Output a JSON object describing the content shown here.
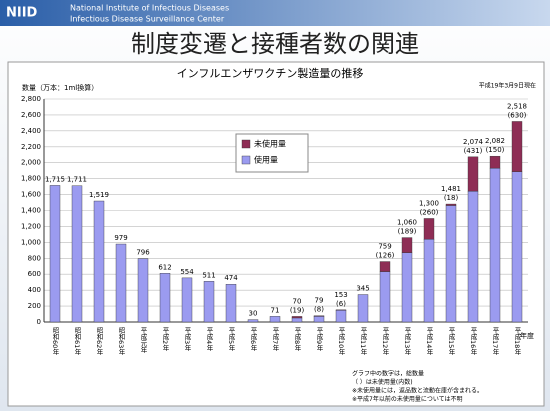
{
  "header": {
    "logo": "NIID",
    "institute": "National Institute of Infectious Diseases",
    "center": "Infectious Disease Surveillance Center",
    "title": "制度変遷と接種者数の関連"
  },
  "chart_data": {
    "type": "stacked_bar",
    "title": "インフルエンザワクチン製造量の推移",
    "date": "平成19年3月9日現在",
    "y_label": "数量（万本：1ml換算）",
    "x_label": "年度",
    "categories": [
      "昭和60年",
      "昭和61年",
      "昭和62年",
      "昭和63年",
      "平成元年",
      "平成2年",
      "平成3年",
      "平成4年",
      "平成5年",
      "平成6年",
      "平成7年",
      "平成8年",
      "平成9年",
      "平成10年",
      "平成11年",
      "平成12年",
      "平成13年",
      "平成14年",
      "平成15年",
      "平成16年",
      "平成17年",
      "平成18年"
    ],
    "series": [
      {
        "name": "使用量",
        "color": "#9b9bf0",
        "values": [
          1715,
          1711,
          1519,
          979,
          796,
          612,
          554,
          511,
          474,
          30,
          71,
          51,
          71,
          147,
          345,
          633,
          871,
          1040,
          1463,
          1643,
          1932,
          1888
        ]
      },
      {
        "name": "未使用量",
        "color": "#8e2d55",
        "values": [
          null,
          null,
          null,
          null,
          null,
          null,
          null,
          null,
          null,
          null,
          null,
          19,
          8,
          6,
          null,
          126,
          189,
          260,
          18,
          431,
          150,
          630
        ],
        "value_labels": [
          null,
          null,
          null,
          null,
          null,
          null,
          null,
          null,
          null,
          null,
          null,
          "(19)",
          "(8)",
          "(6)",
          null,
          "(126)",
          "(189)",
          "(260)",
          "(18)",
          "(431)",
          "(150)",
          "(630)"
        ]
      }
    ],
    "totals": [
      1715,
      1711,
      1519,
      979,
      796,
      612,
      554,
      511,
      474,
      30,
      71,
      70,
      79,
      153,
      345,
      759,
      1060,
      1300,
      1481,
      2074,
      2082,
      2518
    ],
    "total_labels": [
      "1,715",
      "1,711",
      "1,519",
      "979",
      "796",
      "612",
      "554",
      "511",
      "474",
      "30",
      "71",
      "70",
      "79",
      "153",
      "345",
      "759",
      "1,060",
      "1,300",
      "1,481",
      "2,074",
      "2,082",
      "2,518"
    ],
    "ylim": [
      0,
      2800
    ],
    "yticks": [
      0,
      200,
      400,
      600,
      800,
      {
        "value": 1000,
        "label": "1,000"
      },
      {
        "value": 1200,
        "label": "1,200"
      },
      {
        "value": 1400,
        "label": "1,400"
      },
      {
        "value": 1600,
        "label": "1,600"
      },
      {
        "value": 1800,
        "label": "1,800"
      },
      {
        "value": 2000,
        "label": "2,000"
      },
      {
        "value": 2200,
        "label": "2,200"
      },
      {
        "value": 2400,
        "label": "2,400"
      },
      {
        "value": 2600,
        "label": "2,600"
      },
      {
        "value": 2800,
        "label": "2,800"
      }
    ],
    "grid": true,
    "legend": "upper left",
    "notes": [
      "グラフ中の数字は，総数量",
      "（ ）は未使用量(内数)",
      "※未使用量には，返品数と流動在庫が含まれる。",
      "※平成7年以前の未使用量については不明"
    ]
  }
}
